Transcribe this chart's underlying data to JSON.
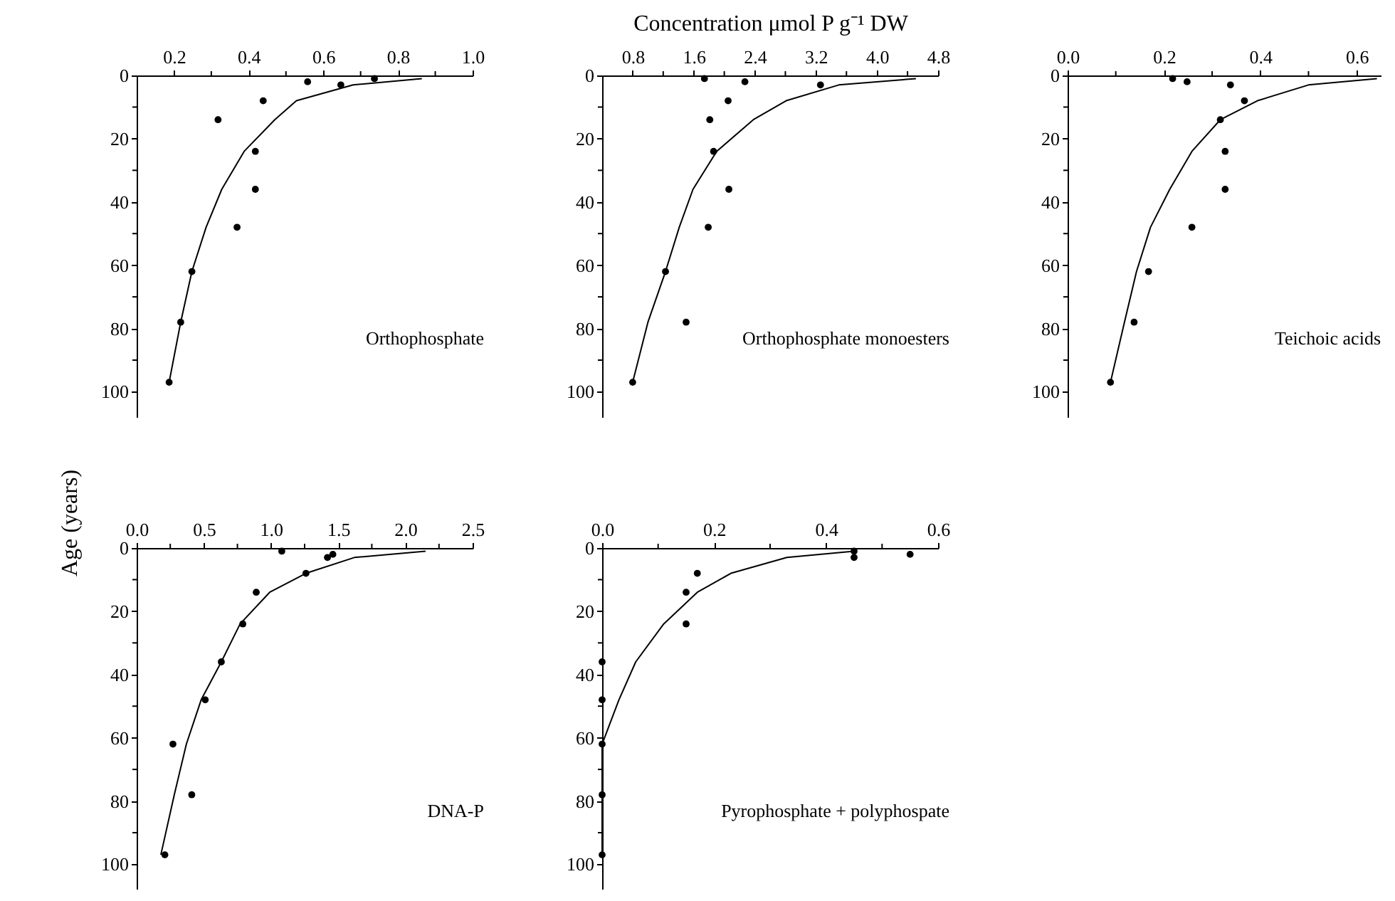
{
  "chart_data": [
    {
      "type": "scatter",
      "annotations": [
        "Orthophosphate"
      ],
      "xlim": [
        0.1,
        1.0
      ],
      "xticks": [
        0.2,
        {
          "value": 0.3,
          "label": null
        },
        0.4,
        {
          "value": 0.5,
          "label": null
        },
        0.6,
        {
          "value": 0.7,
          "label": null
        },
        0.8,
        {
          "value": 0.9,
          "label": null
        },
        {
          "value": 1.0,
          "label": "1.0"
        }
      ],
      "ylim": [
        108,
        0
      ],
      "yticks": [
        0,
        {
          "value": 10,
          "label": null
        },
        20,
        {
          "value": 30,
          "label": null
        },
        40,
        {
          "value": 50,
          "label": null
        },
        60,
        {
          "value": 70,
          "label": null
        },
        80,
        {
          "value": 90,
          "label": null
        },
        100
      ],
      "series": [
        {
          "type": "scatter",
          "marker": "circle",
          "color": "#000000",
          "x": [
            0.737,
            0.558,
            0.647,
            0.439,
            0.318,
            0.418,
            0.418,
            0.369,
            0.248,
            0.218,
            0.187
          ],
          "values": [
            1,
            2,
            3,
            8,
            14,
            24,
            36,
            48,
            62,
            78,
            97
          ]
        },
        {
          "type": "line",
          "color": "#000000",
          "x": [
            0.864,
            0.68,
            0.528,
            0.47,
            0.388,
            0.328,
            0.286,
            0.248,
            0.218,
            0.187
          ],
          "values": [
            1,
            3,
            8,
            14,
            24,
            36,
            48,
            62,
            78,
            97
          ]
        }
      ]
    },
    {
      "type": "scatter",
      "xlabel": "Concentration μmol P g⁻¹ DW",
      "annotations": [
        "Orthophosphate monoesters"
      ],
      "xlim": [
        0.4,
        4.8
      ],
      "xticks": [
        0.8,
        {
          "value": 1.2,
          "label": null
        },
        1.6,
        {
          "value": 2.0,
          "label": null
        },
        2.4,
        {
          "value": 2.8,
          "label": null
        },
        3.2,
        {
          "value": 3.6,
          "label": null
        },
        {
          "value": 4.0,
          "label": "4.0"
        },
        {
          "value": 4.4,
          "label": null
        },
        4.8
      ],
      "ylim": [
        108,
        0
      ],
      "yticks": [
        0,
        {
          "value": 10,
          "label": null
        },
        20,
        {
          "value": 30,
          "label": null
        },
        40,
        {
          "value": 50,
          "label": null
        },
        60,
        {
          "value": 70,
          "label": null
        },
        80,
        {
          "value": 90,
          "label": null
        },
        100
      ],
      "series": [
        {
          "type": "scatter",
          "marker": "circle",
          "color": "#000000",
          "x": [
            1.74,
            2.27,
            3.26,
            2.05,
            1.81,
            1.86,
            2.06,
            1.79,
            1.23,
            1.5,
            0.8
          ],
          "values": [
            1,
            2,
            3,
            8,
            14,
            24,
            36,
            48,
            62,
            78,
            97
          ]
        },
        {
          "type": "line",
          "color": "#000000",
          "x": [
            4.51,
            3.5,
            2.81,
            2.38,
            1.9,
            1.59,
            1.41,
            1.23,
            1.0,
            0.8
          ],
          "values": [
            1,
            3,
            8,
            14,
            24,
            36,
            48,
            62,
            78,
            97
          ]
        }
      ]
    },
    {
      "type": "scatter",
      "annotations": [
        "Teichoic acids"
      ],
      "xlim": [
        0.0,
        0.65
      ],
      "xticks": [
        {
          "value": 0,
          "label": "0.0"
        },
        {
          "value": 0.1,
          "label": null
        },
        0.2,
        {
          "value": 0.3,
          "label": null
        },
        0.4,
        {
          "value": 0.5,
          "label": null
        },
        0.6
      ],
      "ylim": [
        108,
        0
      ],
      "yticks": [
        0,
        {
          "value": 10,
          "label": null
        },
        20,
        {
          "value": 30,
          "label": null
        },
        40,
        {
          "value": 50,
          "label": null
        },
        60,
        {
          "value": 70,
          "label": null
        },
        80,
        {
          "value": 90,
          "label": null
        },
        100
      ],
      "series": [
        {
          "type": "scatter",
          "marker": "circle",
          "color": "#000000",
          "x": [
            0.218,
            0.248,
            0.338,
            0.367,
            0.317,
            0.327,
            0.327,
            0.258,
            0.168,
            0.138,
            0.089
          ],
          "values": [
            1,
            2,
            3,
            8,
            14,
            24,
            36,
            48,
            62,
            78,
            97
          ]
        },
        {
          "type": "line",
          "color": "#000000",
          "x": [
            0.642,
            0.5,
            0.394,
            0.317,
            0.258,
            0.212,
            0.172,
            0.143,
            0.118,
            0.089
          ],
          "values": [
            1,
            3,
            8,
            14,
            24,
            36,
            48,
            62,
            78,
            97
          ]
        }
      ]
    },
    {
      "type": "scatter",
      "ylabel": "Age (years)",
      "annotations": [
        "DNA-P"
      ],
      "xlim": [
        0.0,
        2.5
      ],
      "xticks": [
        {
          "value": 0,
          "label": "0.0"
        },
        {
          "value": 0.25,
          "label": null
        },
        0.5,
        {
          "value": 0.75,
          "label": null
        },
        {
          "value": 1.0,
          "label": "1.0"
        },
        {
          "value": 1.25,
          "label": null
        },
        1.5,
        {
          "value": 1.75,
          "label": null
        },
        {
          "value": 2.0,
          "label": "2.0"
        },
        {
          "value": 2.25,
          "label": null
        },
        2.5
      ],
      "ylim": [
        108,
        0
      ],
      "yticks": [
        0,
        {
          "value": 10,
          "label": null
        },
        20,
        {
          "value": 30,
          "label": null
        },
        40,
        {
          "value": 50,
          "label": null
        },
        60,
        {
          "value": 70,
          "label": null
        },
        80,
        {
          "value": 90,
          "label": null
        },
        100
      ],
      "series": [
        {
          "type": "scatter",
          "marker": "circle",
          "color": "#000000",
          "x": [
            1.08,
            1.46,
            1.42,
            1.26,
            0.89,
            0.79,
            0.63,
            0.51,
            0.27,
            0.41,
            0.21
          ],
          "values": [
            1,
            2,
            3,
            8,
            14,
            24,
            36,
            48,
            62,
            78,
            97
          ]
        },
        {
          "type": "line",
          "color": "#000000",
          "x": [
            2.15,
            1.62,
            1.26,
            0.99,
            0.77,
            0.63,
            0.48,
            0.37,
            0.28,
            0.18
          ],
          "values": [
            1,
            3,
            8,
            14,
            24,
            36,
            48,
            62,
            78,
            97
          ]
        }
      ]
    },
    {
      "type": "scatter",
      "annotations": [
        "Pyrophosphate + polyphospate"
      ],
      "xlim": [
        0.0,
        0.6
      ],
      "xticks": [
        {
          "value": 0,
          "label": "0.0"
        },
        {
          "value": 0.1,
          "label": null
        },
        0.2,
        {
          "value": 0.3,
          "label": null
        },
        0.4,
        {
          "value": 0.5,
          "label": null
        },
        0.6
      ],
      "ylim": [
        108,
        0
      ],
      "yticks": [
        0,
        {
          "value": 10,
          "label": null
        },
        20,
        {
          "value": 30,
          "label": null
        },
        40,
        {
          "value": 50,
          "label": null
        },
        60,
        {
          "value": 70,
          "label": null
        },
        80,
        {
          "value": 90,
          "label": null
        },
        100
      ],
      "series": [
        {
          "type": "scatter",
          "marker": "circle",
          "color": "#000000",
          "x": [
            0.45,
            0.55,
            0.45,
            0.17,
            0.15,
            0.15,
            0.0,
            0.0,
            0.0,
            0.0,
            0.0
          ],
          "values": [
            1,
            2,
            3,
            8,
            14,
            24,
            36,
            48,
            62,
            78,
            97
          ]
        },
        {
          "type": "line",
          "color": "#000000",
          "x": [
            0.45,
            0.33,
            0.23,
            0.17,
            0.11,
            0.06,
            0.03,
            0.0,
            0.0,
            0.0
          ],
          "values": [
            1,
            3,
            8,
            14,
            24,
            36,
            48,
            62,
            78,
            97
          ]
        }
      ]
    }
  ]
}
